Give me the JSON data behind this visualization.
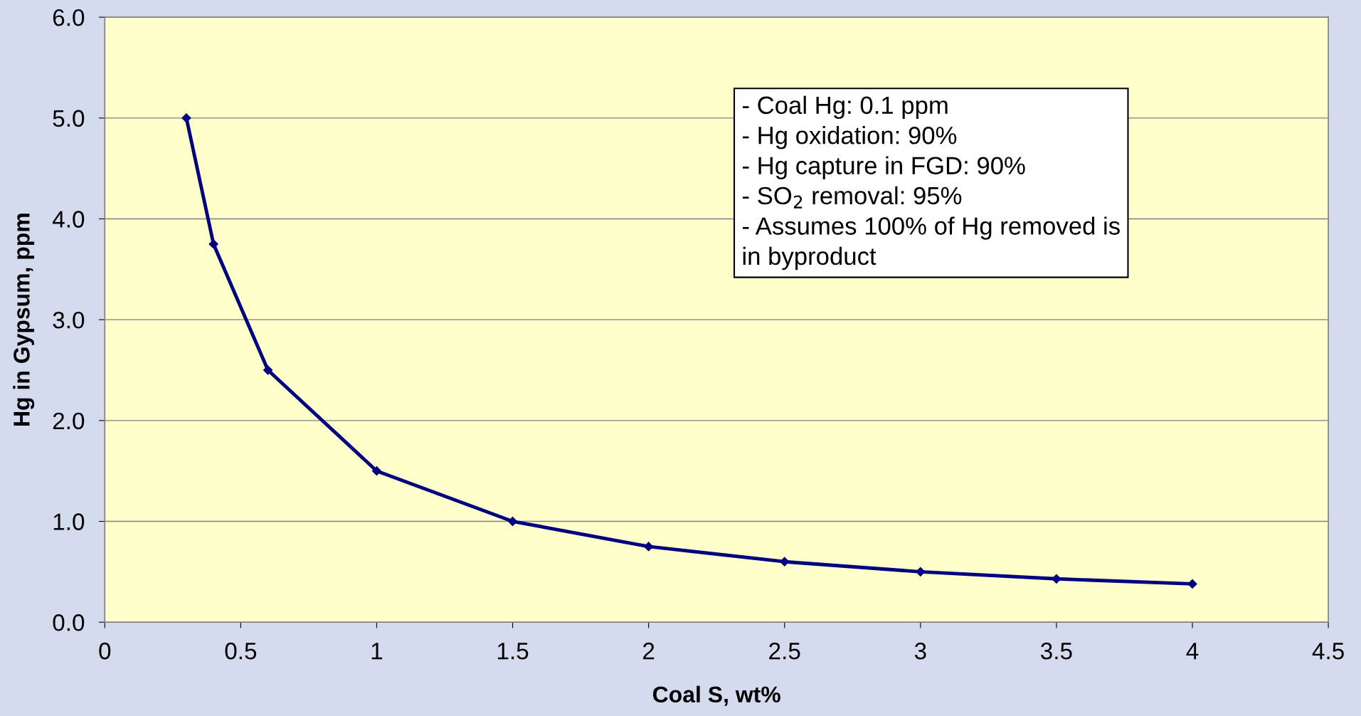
{
  "chart_data": {
    "type": "line",
    "xlabel": "Coal S, wt%",
    "ylabel": "Hg in Gypsum, ppm",
    "x": [
      0.3,
      0.4,
      0.6,
      1,
      1.5,
      2,
      2.5,
      3,
      3.5,
      4
    ],
    "series": [
      {
        "color": "#000080",
        "values": [
          5.0,
          3.75,
          2.5,
          1.5,
          1.0,
          0.75,
          0.6,
          0.5,
          0.43,
          0.38
        ]
      }
    ],
    "marker": "diamond",
    "line_style": "solid",
    "grid": "y",
    "legend": false,
    "xlim": [
      0,
      4.5
    ],
    "xticks": [
      0,
      0.5,
      1,
      1.5,
      2,
      2.5,
      3,
      3.5,
      4,
      4.5
    ],
    "ylim": [
      0,
      6
    ],
    "yticks": [
      {
        "value": 0,
        "label": "0.0"
      },
      {
        "value": 1,
        "label": "1.0"
      },
      {
        "value": 2,
        "label": "2.0"
      },
      {
        "value": 3,
        "label": "3.0"
      },
      {
        "value": 4,
        "label": "4.0"
      },
      {
        "value": 5,
        "label": "5.0"
      },
      {
        "value": 6,
        "label": "6.0"
      }
    ],
    "annotations": [
      "- Coal Hg: 0.1 ppm\n- Hg oxidation: 90%\n- Hg capture in FGD: 90%\n- SO$_{2}$ removal: 95%\n- Assumes 100% of Hg removed is\nin byproduct"
    ]
  }
}
